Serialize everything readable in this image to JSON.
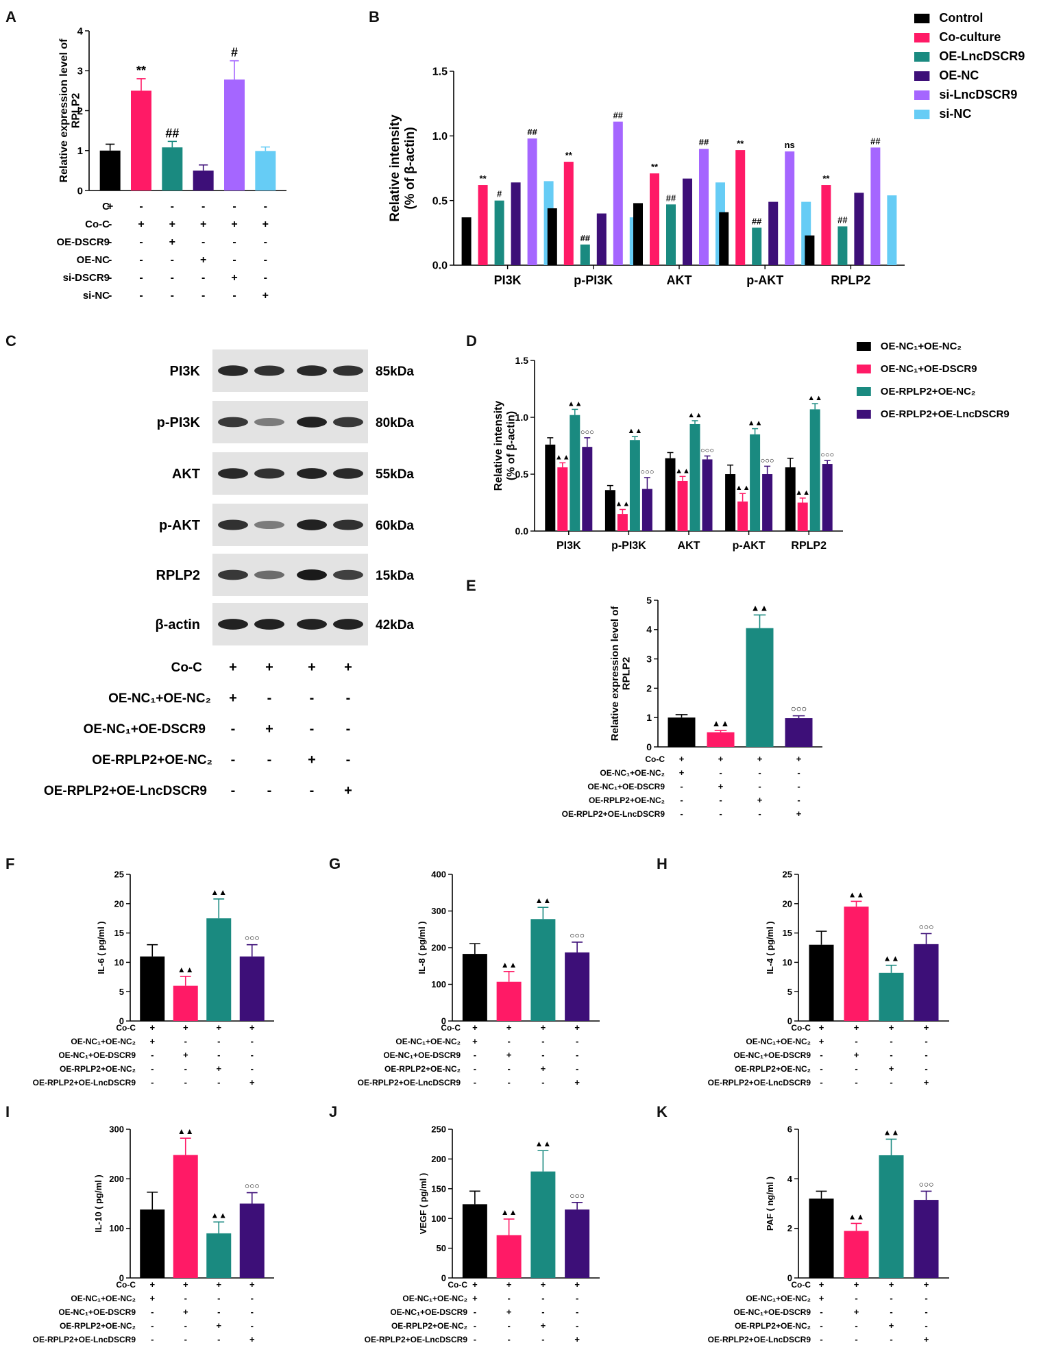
{
  "colors": {
    "black": "#000000",
    "pink": "#ff1a66",
    "teal": "#1a8a80",
    "purple": "#3d0f78",
    "lavender": "#a566ff",
    "lightblue": "#66ccf5"
  },
  "panels": {
    "A": "A",
    "B": "B",
    "C": "C",
    "D": "D",
    "E": "E",
    "F": "F",
    "G": "G",
    "H": "H",
    "I": "I",
    "J": "J",
    "K": "K"
  },
  "signs": {
    "plus": "+",
    "minus": "-"
  },
  "western": {
    "proteins": [
      "PI3K",
      "p-PI3K",
      "AKT",
      "p-AKT",
      "RPLP2",
      "β-actin"
    ],
    "sizes": [
      "85kDa",
      "80kDa",
      "55kDa",
      "60kDa",
      "15kDa",
      "42kDa"
    ],
    "band_intensity": [
      [
        0.9,
        0.85,
        0.9,
        0.85
      ],
      [
        0.8,
        0.35,
        0.95,
        0.8
      ],
      [
        0.9,
        0.85,
        0.95,
        0.9
      ],
      [
        0.85,
        0.35,
        0.95,
        0.85
      ],
      [
        0.8,
        0.45,
        1.0,
        0.75
      ],
      [
        0.95,
        0.95,
        0.95,
        0.95
      ]
    ],
    "conditions": [
      {
        "label": "Co-C",
        "signs": [
          "+",
          "+",
          "+",
          "+"
        ]
      },
      {
        "label": "OE-NC₁+OE-NC₂",
        "signs": [
          "+",
          "-",
          "-",
          "-"
        ]
      },
      {
        "label": "OE-NC₁+OE-DSCR9",
        "signs": [
          "-",
          "+",
          "-",
          "-"
        ]
      },
      {
        "label": "OE-RPLP2+OE-NC₂",
        "signs": [
          "-",
          "-",
          "+",
          "-"
        ]
      },
      {
        "label": "OE-RPLP2+OE-LncDSCR9",
        "signs": [
          "-",
          "-",
          "-",
          "+"
        ]
      }
    ]
  },
  "chart_data": [
    {
      "id": "A",
      "type": "bar",
      "ylabel": "Relative expression level of RPLP2",
      "ylim": [
        0,
        4
      ],
      "yticks": [
        "0",
        "1",
        "2",
        "3",
        "4"
      ],
      "values": [
        1.0,
        2.5,
        1.08,
        0.5,
        2.78,
        0.99
      ],
      "errors": [
        0.16,
        0.3,
        0.15,
        0.14,
        0.47,
        0.1
      ],
      "colors": [
        "#000000",
        "#ff1a66",
        "#1a8a80",
        "#3d0f78",
        "#a566ff",
        "#66ccf5"
      ],
      "annotations": [
        "",
        "**",
        "##",
        "",
        "#",
        ""
      ],
      "conditions": [
        {
          "label": "C",
          "signs": [
            "+",
            "-",
            "-",
            "-",
            "-",
            "-"
          ]
        },
        {
          "label": "Co-C",
          "signs": [
            "-",
            "+",
            "+",
            "+",
            "+",
            "+"
          ]
        },
        {
          "label": "OE-DSCR9",
          "signs": [
            "-",
            "-",
            "+",
            "-",
            "-",
            "-"
          ]
        },
        {
          "label": "OE-NC",
          "signs": [
            "-",
            "-",
            "-",
            "+",
            "-",
            "-"
          ]
        },
        {
          "label": "si-DSCR9",
          "signs": [
            "-",
            "-",
            "-",
            "-",
            "+",
            "-"
          ]
        },
        {
          "label": "si-NC",
          "signs": [
            "-",
            "-",
            "-",
            "-",
            "-",
            "+"
          ]
        }
      ]
    },
    {
      "id": "B",
      "type": "bar",
      "ylabel": "Relative intensity",
      "ylabel2": "(% of β-actin)",
      "ylim": [
        0,
        1.5
      ],
      "yticks": [
        "0.0",
        "0.5",
        "1.0",
        "1.5"
      ],
      "categories": [
        "PI3K",
        "p-PI3K",
        "AKT",
        "p-AKT",
        "RPLP2"
      ],
      "series": [
        {
          "name": "Control",
          "color": "#000000",
          "values": [
            0.37,
            0.44,
            0.48,
            0.41,
            0.23
          ],
          "annotations": [
            "",
            "",
            "",
            "",
            ""
          ]
        },
        {
          "name": "Co-culture",
          "color": "#ff1a66",
          "values": [
            0.62,
            0.8,
            0.71,
            0.89,
            0.62
          ],
          "annotations": [
            "**",
            "**",
            "**",
            "**",
            "**"
          ]
        },
        {
          "name": "OE-LncDSCR9",
          "color": "#1a8a80",
          "values": [
            0.5,
            0.16,
            0.47,
            0.29,
            0.3
          ],
          "annotations": [
            "#",
            "##",
            "##",
            "##",
            "##"
          ]
        },
        {
          "name": "OE-NC",
          "color": "#3d0f78",
          "values": [
            0.64,
            0.4,
            0.67,
            0.49,
            0.56
          ],
          "annotations": [
            "",
            "",
            "",
            "",
            ""
          ]
        },
        {
          "name": "si-LncDSCR9",
          "color": "#a566ff",
          "values": [
            0.98,
            1.11,
            0.9,
            0.88,
            0.91
          ],
          "annotations": [
            "##",
            "##",
            "##",
            "ns",
            "##"
          ]
        },
        {
          "name": "si-NC",
          "color": "#66ccf5",
          "values": [
            0.65,
            0.37,
            0.64,
            0.49,
            0.54
          ],
          "annotations": [
            "",
            "",
            "",
            "",
            ""
          ]
        }
      ]
    },
    {
      "id": "D",
      "type": "bar",
      "ylabel": "Relative intensity",
      "ylabel2": "(% of β-actin)",
      "ylim": [
        0,
        1.5
      ],
      "yticks": [
        "0.0",
        "0.5",
        "1.0",
        "1.5"
      ],
      "categories": [
        "PI3K",
        "p-PI3K",
        "AKT",
        "p-AKT",
        "RPLP2"
      ],
      "series": [
        {
          "name": "OE-NC₁+OE-NC₂",
          "color": "#000000",
          "values": [
            0.76,
            0.36,
            0.64,
            0.5,
            0.56
          ],
          "errors": [
            0.06,
            0.04,
            0.05,
            0.08,
            0.08
          ],
          "annotations": [
            "",
            "",
            "",
            "",
            ""
          ]
        },
        {
          "name": "OE-NC₁+OE-DSCR9",
          "color": "#ff1a66",
          "values": [
            0.56,
            0.15,
            0.44,
            0.26,
            0.25
          ],
          "errors": [
            0.04,
            0.04,
            0.04,
            0.07,
            0.04
          ],
          "annotations": [
            "▲▲",
            "▲▲",
            "▲▲",
            "▲▲",
            "▲▲"
          ]
        },
        {
          "name": "OE-RPLP2+OE-NC₂",
          "color": "#1a8a80",
          "values": [
            1.02,
            0.8,
            0.94,
            0.85,
            1.07
          ],
          "errors": [
            0.05,
            0.03,
            0.03,
            0.05,
            0.05
          ],
          "annotations": [
            "▲▲",
            "▲▲",
            "▲▲",
            "▲▲",
            "▲▲"
          ]
        },
        {
          "name": "OE-RPLP2+OE-LncDSCR9",
          "color": "#3d0f78",
          "values": [
            0.74,
            0.37,
            0.63,
            0.5,
            0.59
          ],
          "errors": [
            0.08,
            0.1,
            0.03,
            0.07,
            0.03
          ],
          "annotations": [
            "○○○",
            "○○○",
            "○○○",
            "○○○",
            "○○○"
          ]
        }
      ]
    },
    {
      "id": "E",
      "type": "bar",
      "ylabel": "Relative expression level of RPLP2",
      "ylim": [
        0,
        5
      ],
      "yticks": [
        "0",
        "1",
        "2",
        "3",
        "4",
        "5"
      ],
      "values": [
        1.0,
        0.5,
        4.05,
        0.98
      ],
      "errors": [
        0.1,
        0.06,
        0.45,
        0.08
      ],
      "colors": [
        "#000000",
        "#ff1a66",
        "#1a8a80",
        "#3d0f78"
      ],
      "annotations": [
        "",
        "▲▲",
        "▲▲",
        "○○○"
      ]
    },
    {
      "id": "F",
      "type": "bar",
      "ylabel": "IL-6 ( pg/ml )",
      "ylim": [
        0,
        25
      ],
      "yticks": [
        "0",
        "5",
        "10",
        "15",
        "20",
        "25"
      ],
      "values": [
        11,
        6,
        17.5,
        11
      ],
      "errors": [
        2,
        1.6,
        3.3,
        2
      ],
      "colors": [
        "#000000",
        "#ff1a66",
        "#1a8a80",
        "#3d0f78"
      ],
      "annotations": [
        "",
        "▲▲",
        "▲▲",
        "○○○"
      ]
    },
    {
      "id": "G",
      "type": "bar",
      "ylabel": "IL-8 ( pg/ml )",
      "ylim": [
        0,
        400
      ],
      "yticks": [
        "0",
        "100",
        "200",
        "300",
        "400"
      ],
      "values": [
        183,
        107,
        278,
        187
      ],
      "errors": [
        28,
        28,
        32,
        28
      ],
      "colors": [
        "#000000",
        "#ff1a66",
        "#1a8a80",
        "#3d0f78"
      ],
      "annotations": [
        "",
        "▲▲",
        "▲▲",
        "○○○"
      ]
    },
    {
      "id": "H",
      "type": "bar",
      "ylabel": "IL-4 ( pg/ml )",
      "ylim": [
        0,
        25
      ],
      "yticks": [
        "0",
        "5",
        "10",
        "15",
        "20",
        "25"
      ],
      "values": [
        13,
        19.5,
        8.2,
        13.1
      ],
      "errors": [
        2.3,
        0.9,
        1.3,
        1.8
      ],
      "colors": [
        "#000000",
        "#ff1a66",
        "#1a8a80",
        "#3d0f78"
      ],
      "annotations": [
        "",
        "▲▲",
        "▲▲",
        "○○○"
      ]
    },
    {
      "id": "I",
      "type": "bar",
      "ylabel": "IL-10 ( pg/ml )",
      "ylim": [
        0,
        300
      ],
      "yticks": [
        "0",
        "100",
        "200",
        "300"
      ],
      "values": [
        138,
        248,
        90,
        150
      ],
      "errors": [
        35,
        34,
        23,
        22
      ],
      "colors": [
        "#000000",
        "#ff1a66",
        "#1a8a80",
        "#3d0f78"
      ],
      "annotations": [
        "",
        "▲▲",
        "▲▲",
        "○○○"
      ]
    },
    {
      "id": "J",
      "type": "bar",
      "ylabel": "VEGF ( pg/ml )",
      "ylim": [
        0,
        250
      ],
      "yticks": [
        "0",
        "50",
        "100",
        "150",
        "200",
        "250"
      ],
      "values": [
        124,
        72,
        179,
        115
      ],
      "errors": [
        22,
        27,
        35,
        12
      ],
      "colors": [
        "#000000",
        "#ff1a66",
        "#1a8a80",
        "#3d0f78"
      ],
      "annotations": [
        "",
        "▲▲",
        "▲▲",
        "○○○"
      ]
    },
    {
      "id": "K",
      "type": "bar",
      "ylabel": "PAF ( ng/ml )",
      "ylim": [
        0,
        6
      ],
      "yticks": [
        "0",
        "2",
        "4",
        "6"
      ],
      "values": [
        3.2,
        1.9,
        4.95,
        3.15
      ],
      "errors": [
        0.3,
        0.3,
        0.65,
        0.35
      ],
      "colors": [
        "#000000",
        "#ff1a66",
        "#1a8a80",
        "#3d0f78"
      ],
      "annotations": [
        "",
        "▲▲",
        "▲▲",
        "○○○"
      ]
    }
  ],
  "group_conditions": [
    {
      "label": "Co-C",
      "signs": [
        "+",
        "+",
        "+",
        "+"
      ]
    },
    {
      "label": "OE-NC₁+OE-NC₂",
      "signs": [
        "+",
        "-",
        "-",
        "-"
      ]
    },
    {
      "label": "OE-NC₁+OE-DSCR9",
      "signs": [
        "-",
        "+",
        "-",
        "-"
      ]
    },
    {
      "label": "OE-RPLP2+OE-NC₂",
      "signs": [
        "-",
        "-",
        "+",
        "-"
      ]
    },
    {
      "label": "OE-RPLP2+OE-LncDSCR9",
      "signs": [
        "-",
        "-",
        "-",
        "+"
      ]
    }
  ]
}
